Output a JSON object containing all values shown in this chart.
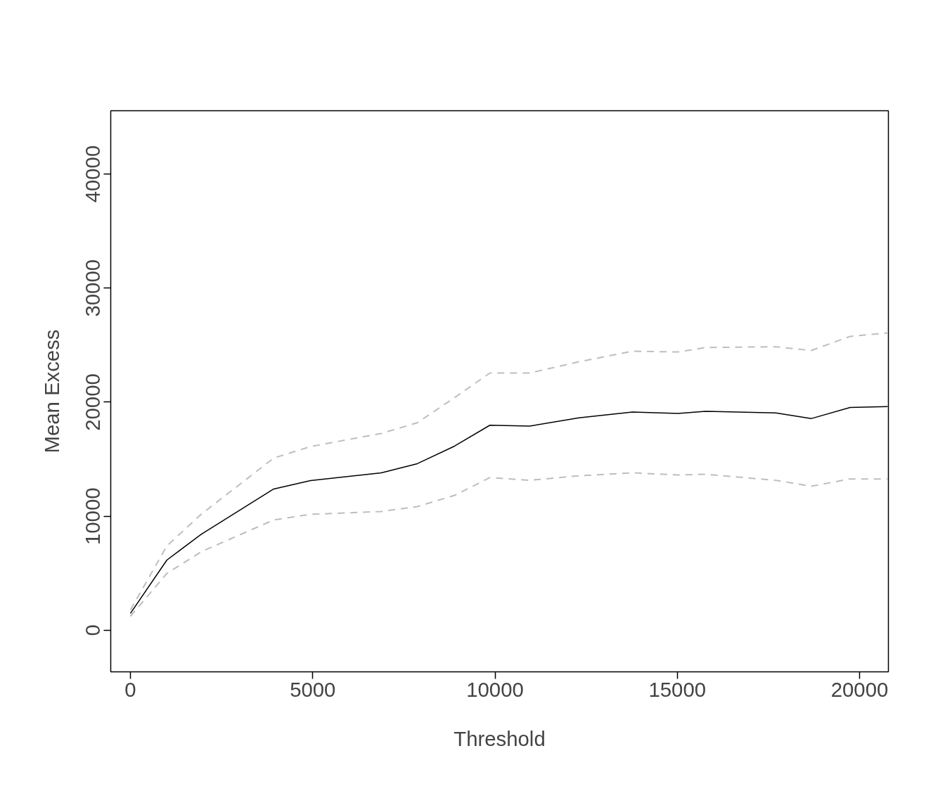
{
  "chart_data": {
    "type": "line",
    "xlabel": "Threshold",
    "ylabel": "Mean Excess",
    "x": [
      0,
      1000,
      1950,
      3930,
      4940,
      6880,
      7870,
      8890,
      9860,
      10950,
      12300,
      13770,
      15020,
      15770,
      17700,
      18670,
      19740,
      20770
    ],
    "series": [
      {
        "color": "#000000",
        "line_style": "solid",
        "values": [
          1480,
          6160,
          8440,
          12390,
          13130,
          13810,
          14610,
          16150,
          17980,
          17900,
          18630,
          19130,
          19020,
          19200,
          19060,
          18560,
          19540,
          19610
        ]
      },
      {
        "color": "#bebebe",
        "line_style": "dashed",
        "values": [
          1230,
          4990,
          6900,
          9680,
          10170,
          10420,
          10850,
          11830,
          13390,
          13150,
          13550,
          13810,
          13620,
          13680,
          13150,
          12630,
          13270,
          13270
        ]
      },
      {
        "color": "#bebebe",
        "line_style": "dashed",
        "values": [
          1790,
          7400,
          10200,
          15100,
          16110,
          17260,
          18200,
          20400,
          22560,
          22560,
          23540,
          24470,
          24400,
          24790,
          24860,
          24530,
          25770,
          26070
        ]
      }
    ],
    "xlim": [
      -540,
      20790
    ],
    "ylim": [
      -3640,
      45550
    ],
    "xticks": [
      0,
      5000,
      10000,
      15000,
      20000
    ],
    "yticks": [
      0,
      10000,
      20000,
      30000,
      40000
    ],
    "grid": false,
    "marker": "none"
  }
}
